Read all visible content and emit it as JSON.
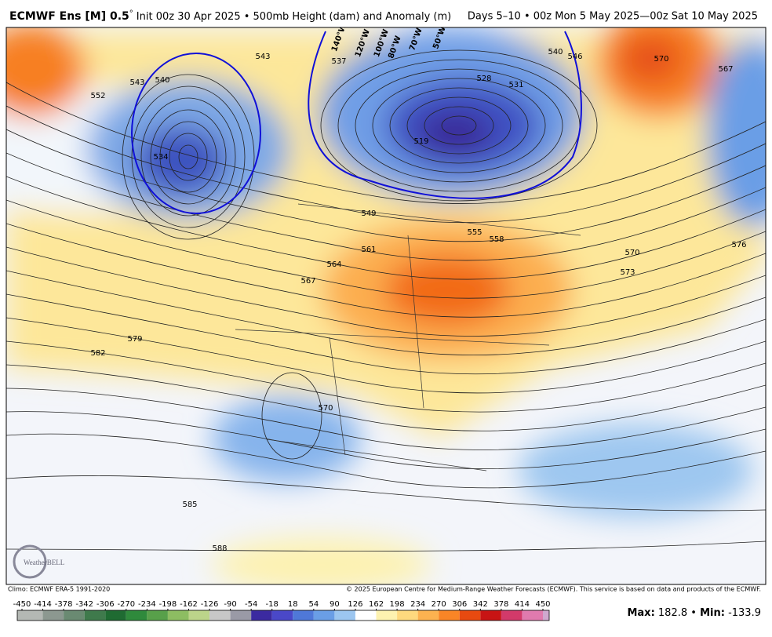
{
  "header": {
    "title_bold": "ECMWF Ens [M] 0.5",
    "degree": "°",
    "title_rest": "Init 00z 30 Apr 2025 • 500mb Height (dam) and Anomaly (m)",
    "valid": "Days 5–10 • 00z Mon 5 May 2025—00z Sat 10 May 2025"
  },
  "map": {
    "contour_labels": [
      552,
      543,
      540,
      534,
      543,
      537,
      540,
      546,
      531,
      528,
      519,
      570,
      567,
      576,
      573,
      570,
      558,
      555,
      549,
      561,
      564,
      567,
      579,
      582,
      585,
      588,
      570
    ],
    "longitude_labels": [
      "140°W",
      "120°W",
      "100°W",
      "80°W",
      "70°W",
      "50°W"
    ],
    "logo": "WeatherBELL"
  },
  "footer": {
    "climo": "Climo: ECMWF ERA-5 1991-2020",
    "copyright": "© 2025 European Centre for Medium-Range Weather Forecasts (ECMWF). This service is based on data and products of the ECMWF."
  },
  "colorbar": {
    "ticks": [
      -450,
      -414,
      -378,
      -342,
      -306,
      -270,
      -234,
      -198,
      -162,
      -126,
      -90,
      -54,
      -18,
      18,
      54,
      90,
      126,
      162,
      198,
      234,
      270,
      306,
      342,
      378,
      414,
      450
    ],
    "colors": [
      "#b4b8b4",
      "#8c9890",
      "#6a8a72",
      "#3f7a4c",
      "#1f6b32",
      "#2f8a3c",
      "#58a04a",
      "#8dbd62",
      "#bcd48a",
      "#c7c7c7",
      "#9a9aa6",
      "#3b2aa0",
      "#4a48c8",
      "#4f78d8",
      "#6a9ee6",
      "#9cc6f0",
      "#ffffff",
      "#fdf2b0",
      "#fed97e",
      "#fcb250",
      "#f98526",
      "#e84a10",
      "#c81414",
      "#d23a6a",
      "#e07aae"
    ],
    "extra_colors": [
      "#e9a6cc",
      "#cfa8cf"
    ]
  },
  "stats": {
    "max_label": "Max:",
    "max": 182.8,
    "separator": "•",
    "min_label": "Min:",
    "min": -133.9
  }
}
